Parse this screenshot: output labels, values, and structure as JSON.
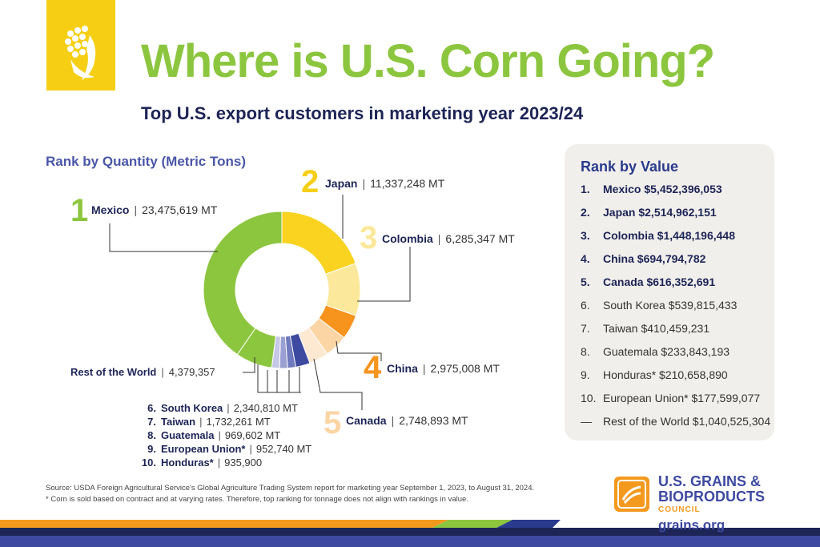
{
  "header": {
    "title": "Where is U.S. Corn Going?",
    "subtitle": "Top U.S. export customers in marketing year 2023/24"
  },
  "colors": {
    "title_green": "#8cc63f",
    "navy": "#1d2456",
    "accent_blue": "#4a57a8",
    "logo_yellow": "#f6cf15",
    "orange": "#f39a1e"
  },
  "chart_data": {
    "type": "pie",
    "title": "Rank by Quantity (Metric Tons)",
    "unit": "MT",
    "categories": [
      "Mexico",
      "Japan",
      "Colombia",
      "China",
      "Canada",
      "South Korea",
      "Taiwan",
      "Guatemala",
      "European Union*",
      "Honduras*",
      "Rest of the World"
    ],
    "values": [
      23475619,
      11337248,
      6285347,
      2975008,
      2748893,
      2340810,
      1732261,
      969602,
      952740,
      935900,
      4379357
    ],
    "labels": [
      "23,475,619 MT",
      "11,337,248 MT",
      "6,285,347 MT",
      "2,975,008 MT",
      "2,748,893 MT",
      "2,340,810 MT",
      "1,732,261 MT",
      "969,602 MT",
      "952,740 MT",
      "935,900",
      "4,379,357"
    ],
    "ranks": [
      "1",
      "2",
      "3",
      "4",
      "5",
      "6.",
      "7.",
      "8.",
      "9.",
      "10.",
      ""
    ],
    "colors": [
      "#8cc63f",
      "#f9d320",
      "#fbe89a",
      "#f7941d",
      "#fcd5a5",
      "#fde8d2",
      "#3d4aa0",
      "#6f79bd",
      "#9aa0d2",
      "#c5c8e6",
      "#8cc63f"
    ]
  },
  "value_ranking": {
    "title": "Rank by Value",
    "items": [
      {
        "rank": "1.",
        "text": "Mexico $5,452,396,053"
      },
      {
        "rank": "2.",
        "text": "Japan $2,514,962,151"
      },
      {
        "rank": "3.",
        "text": "Colombia $1,448,196,448"
      },
      {
        "rank": "4.",
        "text": "China $694,794,782"
      },
      {
        "rank": "5.",
        "text": "Canada $616,352,691"
      },
      {
        "rank": "6.",
        "text": "South Korea $539,815,433"
      },
      {
        "rank": "7.",
        "text": "Taiwan $410,459,231"
      },
      {
        "rank": "8.",
        "text": "Guatemala $233,843,193"
      },
      {
        "rank": "9.",
        "text": "Honduras* $210,658,890"
      },
      {
        "rank": "10.",
        "text": "European Union* $177,599,077"
      },
      {
        "rank": "—",
        "text": "Rest of the World $1,040,525,304"
      }
    ]
  },
  "footer": {
    "source": "Source: USDA Foreign Agricultural Service's Global Agriculture Trading System report for marketing year September 1, 2023, to August 31, 2024.",
    "note": "* Corn is sold based on contract and at varying rates. Therefore, top ranking for tonnage does not align with rankings in value.",
    "org_line1": "U.S. GRAINS &",
    "org_line2": "BIOPRODUCTS",
    "org_line3": "COUNCIL",
    "url": "grains.org"
  },
  "icons": {
    "logo": "corn-icon",
    "org_logo": "usgbc-logo-icon"
  }
}
